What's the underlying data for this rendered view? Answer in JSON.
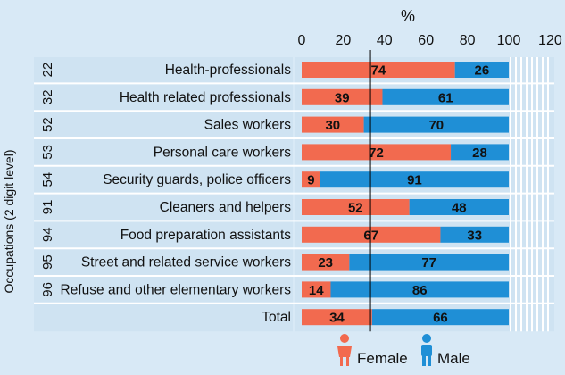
{
  "chart_data": {
    "type": "bar",
    "stacked": true,
    "orientation": "horizontal",
    "xlabel": "%",
    "ylabel": "Occupations (2 digit level)",
    "xlim": [
      0,
      120
    ],
    "xticks": [
      "0",
      "20",
      "40",
      "60",
      "80",
      "100",
      "120"
    ],
    "reference_line": 33,
    "codes": [
      "22",
      "32",
      "52",
      "53",
      "54",
      "91",
      "94",
      "95",
      "96",
      ""
    ],
    "categories": [
      "Health-professionals",
      "Health related professionals",
      "Sales workers",
      "Personal care workers",
      "Security guards, police officers",
      "Cleaners and helpers",
      "Food preparation assistants",
      "Street and related service workers",
      "Refuse and other elementary workers",
      "Total"
    ],
    "series": [
      {
        "name": "Female",
        "color": "#f26a4f",
        "values": [
          74,
          39,
          30,
          72,
          9,
          52,
          67,
          23,
          14,
          34
        ]
      },
      {
        "name": "Male",
        "color": "#1f8fd6",
        "values": [
          26,
          61,
          70,
          28,
          91,
          48,
          33,
          77,
          86,
          66
        ]
      }
    ],
    "legend": {
      "female": "Female",
      "male": "Male",
      "position": "bottom-right"
    }
  }
}
